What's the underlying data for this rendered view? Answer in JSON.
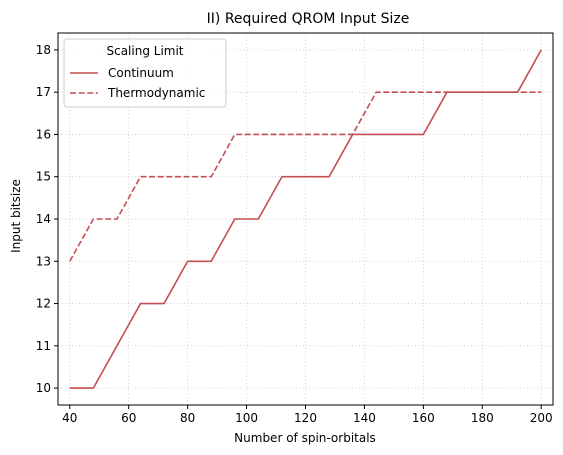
{
  "chart_data": {
    "type": "line",
    "title": "II) Required QROM Input Size",
    "xlabel": "Number of spin-orbitals",
    "ylabel": "Input bitsize",
    "xlim": [
      36,
      204
    ],
    "ylim": [
      9.6,
      18.4
    ],
    "xticks": [
      40,
      60,
      80,
      100,
      120,
      140,
      160,
      180,
      200
    ],
    "yticks": [
      10,
      11,
      12,
      13,
      14,
      15,
      16,
      17,
      18
    ],
    "grid": true,
    "legend": {
      "title": "Scaling Limit",
      "placement": "top-left"
    },
    "series_color": "#c44e52",
    "series": [
      {
        "name": "Continuum",
        "style": "solid",
        "x": [
          40,
          48,
          64,
          72,
          80,
          88,
          96,
          104,
          112,
          128,
          136,
          160,
          168,
          192,
          200
        ],
        "y": [
          10,
          10,
          12,
          12,
          13,
          13,
          14,
          14,
          15,
          15,
          16,
          16,
          17,
          17,
          18
        ]
      },
      {
        "name": "Thermodynamic",
        "style": "dashed",
        "x": [
          40,
          48,
          56,
          64,
          88,
          96,
          136,
          144,
          200
        ],
        "y": [
          13,
          14,
          14,
          15,
          15,
          16,
          16,
          17,
          17
        ]
      }
    ]
  }
}
